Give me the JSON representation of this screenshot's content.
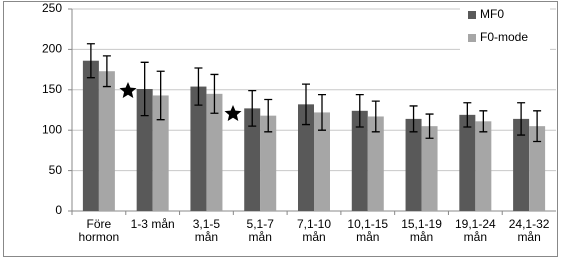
{
  "chart_data": {
    "type": "bar",
    "categories": [
      "Före\nhormon",
      "1-3 mån",
      "3,1-5\nmån",
      "5,1-7\nmån",
      "7,1-10\nmån",
      "10,1-15\nmån",
      "15,1-19\nmån",
      "19,1-24\nmån",
      "24,1-32\nmån"
    ],
    "series": [
      {
        "name": "MF0",
        "color": "#595959",
        "values": [
          186,
          151,
          154,
          127,
          132,
          124,
          114,
          119,
          114
        ],
        "errors": [
          21,
          33,
          23,
          22,
          25,
          20,
          16,
          15,
          20
        ]
      },
      {
        "name": "F0-mode",
        "color": "#a6a6a6",
        "values": [
          173,
          143,
          145,
          118,
          122,
          117,
          105,
          111,
          105
        ],
        "errors": [
          19,
          30,
          24,
          20,
          22,
          19,
          15,
          13,
          19
        ]
      }
    ],
    "ylim": [
      0,
      250
    ],
    "yticks": [
      0,
      50,
      100,
      150,
      200,
      250
    ],
    "grid": true,
    "legend": "top-right"
  }
}
